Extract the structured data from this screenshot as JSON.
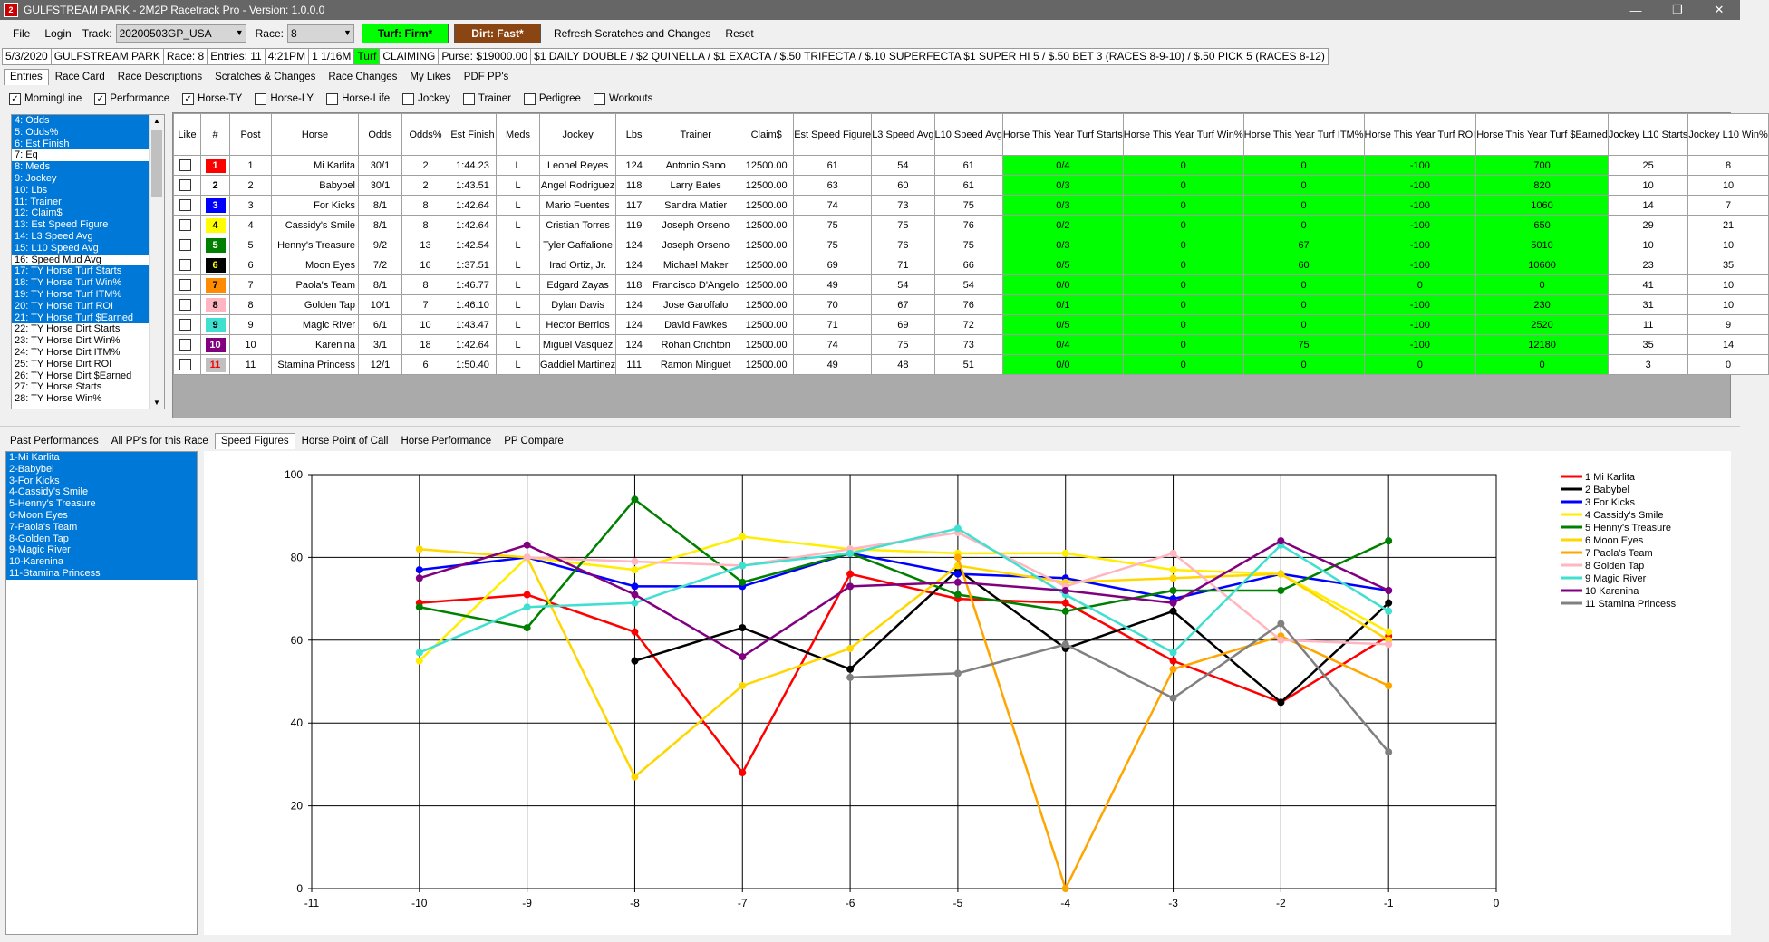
{
  "app": {
    "title": "GULFSTREAM PARK - 2M2P Racetrack Pro - Version: 1.0.0.0",
    "icon": "app-logo-icon"
  },
  "menu": {
    "file": "File",
    "login": "Login",
    "track_label": "Track:",
    "track_value": "20200503GP_USA",
    "race_label": "Race:",
    "race_value": "8",
    "turf": "Turf: Firm*",
    "dirt": "Dirt: Fast*",
    "refresh": "Refresh Scratches and Changes",
    "reset": "Reset"
  },
  "info": {
    "date": "5/3/2020",
    "track": "GULFSTREAM PARK",
    "race": "Race: 8",
    "entries": "Entries: 11",
    "time": "4:21PM",
    "distance": "1 1/16M",
    "surface": "Turf",
    "type": "CLAIMING",
    "purse": "Purse: $19000.00",
    "wagers": "$1 DAILY DOUBLE / $2 QUINELLA / $1 EXACTA / $.50 TRIFECTA / $.10 SUPERFECTA $1 SUPER HI 5 / $.50 BET 3 (RACES 8-9-10) / $.50 PICK 5 (RACES 8-12)"
  },
  "top_tabs": [
    "Entries",
    "Race Card",
    "Race Descriptions",
    "Scratches & Changes",
    "Race Changes",
    "My Likes",
    "PDF PP's"
  ],
  "checks": [
    {
      "label": "MorningLine",
      "checked": true
    },
    {
      "label": "Performance",
      "checked": true
    },
    {
      "label": "Horse-TY",
      "checked": true
    },
    {
      "label": "Horse-LY",
      "checked": false
    },
    {
      "label": "Horse-Life",
      "checked": false
    },
    {
      "label": "Jockey",
      "checked": false
    },
    {
      "label": "Trainer",
      "checked": false
    },
    {
      "label": "Pedigree",
      "checked": false
    },
    {
      "label": "Workouts",
      "checked": false
    }
  ],
  "columns_list": [
    {
      "t": "4: Odds",
      "s": true
    },
    {
      "t": "5: Odds%",
      "s": true
    },
    {
      "t": "6: Est Finish",
      "s": true
    },
    {
      "t": "7: Eq",
      "s": false
    },
    {
      "t": "8: Meds",
      "s": true
    },
    {
      "t": "9: Jockey",
      "s": true
    },
    {
      "t": "10: Lbs",
      "s": true
    },
    {
      "t": "11: Trainer",
      "s": true
    },
    {
      "t": "12: Claim$",
      "s": true
    },
    {
      "t": "13: Est Speed Figure",
      "s": true
    },
    {
      "t": "14: L3 Speed Avg",
      "s": true
    },
    {
      "t": "15: L10 Speed Avg",
      "s": true
    },
    {
      "t": "16: Speed Mud Avg",
      "s": false
    },
    {
      "t": "17: TY Horse Turf Starts",
      "s": true
    },
    {
      "t": "18: TY Horse Turf Win%",
      "s": true
    },
    {
      "t": "19: TY Horse Turf ITM%",
      "s": true
    },
    {
      "t": "20: TY Horse Turf ROI",
      "s": true
    },
    {
      "t": "21: TY Horse Turf $Earned",
      "s": true
    },
    {
      "t": "22: TY Horse Dirt Starts",
      "s": false
    },
    {
      "t": "23: TY Horse Dirt Win%",
      "s": false
    },
    {
      "t": "24: TY Horse Dirt ITM%",
      "s": false
    },
    {
      "t": "25: TY Horse Dirt ROI",
      "s": false
    },
    {
      "t": "26: TY Horse Dirt $Earned",
      "s": false
    },
    {
      "t": "27: TY Horse Starts",
      "s": false
    },
    {
      "t": "28: TY Horse Win%",
      "s": false
    }
  ],
  "table": {
    "headers": [
      "Like",
      "#",
      "Post",
      "Horse",
      "Odds",
      "Odds%",
      "Est Finish",
      "Meds",
      "Jockey",
      "Lbs",
      "Trainer",
      "Claim$",
      "Est Speed Figure",
      "L3 Speed Avg",
      "L10 Speed Avg",
      "Horse This Year Turf Starts",
      "Horse This Year Turf Win%",
      "Horse This Year Turf ITM%",
      "Horse This Year Turf ROI",
      "Horse This Year Turf $Earned",
      "Jockey L10 Starts",
      "Jockey L10 Win%"
    ],
    "rows": [
      [
        "1",
        "1",
        "Mi Karlita",
        "30/1",
        "2",
        "1:44.23",
        "L",
        "Leonel Reyes",
        "124",
        "Antonio Sano",
        "12500.00",
        "61",
        "54",
        "61",
        "0/4",
        "0",
        "0",
        "-100",
        "700",
        "25",
        "8"
      ],
      [
        "2",
        "2",
        "Babybel",
        "30/1",
        "2",
        "1:43.51",
        "L",
        "Angel Rodriguez",
        "118",
        "Larry Bates",
        "12500.00",
        "63",
        "60",
        "61",
        "0/3",
        "0",
        "0",
        "-100",
        "820",
        "10",
        "10"
      ],
      [
        "3",
        "3",
        "For Kicks",
        "8/1",
        "8",
        "1:42.64",
        "L",
        "Mario Fuentes",
        "117",
        "Sandra Matier",
        "12500.00",
        "74",
        "73",
        "75",
        "0/3",
        "0",
        "0",
        "-100",
        "1060",
        "14",
        "7"
      ],
      [
        "4",
        "4",
        "Cassidy's Smile",
        "8/1",
        "8",
        "1:42.64",
        "L",
        "Cristian Torres",
        "119",
        "Joseph Orseno",
        "12500.00",
        "75",
        "75",
        "76",
        "0/2",
        "0",
        "0",
        "-100",
        "650",
        "29",
        "21"
      ],
      [
        "5",
        "5",
        "Henny's Treasure",
        "9/2",
        "13",
        "1:42.54",
        "L",
        "Tyler Gaffalione",
        "124",
        "Joseph Orseno",
        "12500.00",
        "75",
        "76",
        "75",
        "0/3",
        "0",
        "67",
        "-100",
        "5010",
        "10",
        "10"
      ],
      [
        "6",
        "6",
        "Moon Eyes",
        "7/2",
        "16",
        "1:37.51",
        "L",
        "Irad Ortiz, Jr.",
        "124",
        "Michael Maker",
        "12500.00",
        "69",
        "71",
        "66",
        "0/5",
        "0",
        "60",
        "-100",
        "10600",
        "23",
        "35"
      ],
      [
        "7",
        "7",
        "Paola's Team",
        "8/1",
        "8",
        "1:46.77",
        "L",
        "Edgard Zayas",
        "118",
        "Francisco D'Angelo",
        "12500.00",
        "49",
        "54",
        "54",
        "0/0",
        "0",
        "0",
        "0",
        "0",
        "41",
        "10"
      ],
      [
        "8",
        "8",
        "Golden Tap",
        "10/1",
        "7",
        "1:46.10",
        "L",
        "Dylan Davis",
        "124",
        "Jose Garoffalo",
        "12500.00",
        "70",
        "67",
        "76",
        "0/1",
        "0",
        "0",
        "-100",
        "230",
        "31",
        "10"
      ],
      [
        "9",
        "9",
        "Magic River",
        "6/1",
        "10",
        "1:43.47",
        "L",
        "Hector Berrios",
        "124",
        "David Fawkes",
        "12500.00",
        "71",
        "69",
        "72",
        "0/5",
        "0",
        "0",
        "-100",
        "2520",
        "11",
        "9"
      ],
      [
        "10",
        "10",
        "Karenina",
        "3/1",
        "18",
        "1:42.64",
        "L",
        "Miguel Vasquez",
        "124",
        "Rohan Crichton",
        "12500.00",
        "74",
        "75",
        "73",
        "0/4",
        "0",
        "75",
        "-100",
        "12180",
        "35",
        "14"
      ],
      [
        "11",
        "11",
        "Stamina Princess",
        "12/1",
        "6",
        "1:50.40",
        "L",
        "Gaddiel Martinez",
        "111",
        "Ramon Minguet",
        "12500.00",
        "49",
        "48",
        "51",
        "0/0",
        "0",
        "0",
        "0",
        "0",
        "3",
        "0"
      ]
    ],
    "saddle_colors": [
      [
        "#ff0000",
        "#fff"
      ],
      [
        "#ffffff",
        "#000"
      ],
      [
        "#0000ff",
        "#fff"
      ],
      [
        "#ffff00",
        "#000"
      ],
      [
        "#008000",
        "#fff"
      ],
      [
        "#000000",
        "#ff0"
      ],
      [
        "#ff8c00",
        "#000"
      ],
      [
        "#ffb6c1",
        "#000"
      ],
      [
        "#40e0d0",
        "#000"
      ],
      [
        "#800080",
        "#fff"
      ],
      [
        "#c0c0c0",
        "#f00"
      ]
    ]
  },
  "bottom_tabs": [
    "Past Performances",
    "All PP's for this Race",
    "Speed Figures",
    "Horse Point of Call",
    "Horse Performance",
    "PP Compare"
  ],
  "horse_list": [
    "1-Mi Karlita",
    "2-Babybel",
    "3-For Kicks",
    "4-Cassidy's Smile",
    "5-Henny's Treasure",
    "6-Moon Eyes",
    "7-Paola's Team",
    "8-Golden Tap",
    "9-Magic River",
    "10-Karenina",
    "11-Stamina Princess"
  ],
  "chart_data": {
    "type": "line",
    "x": [
      -11,
      -10,
      -9,
      -8,
      -7,
      -6,
      -5,
      -4,
      -3,
      -2,
      -1,
      0
    ],
    "xlim": [
      -11,
      0
    ],
    "ylim": [
      0,
      100
    ],
    "yticks": [
      0,
      20,
      40,
      60,
      80,
      100
    ],
    "xlabel": "",
    "ylabel": "",
    "title": "",
    "grid": true,
    "legend": "right",
    "series": [
      {
        "name": "1 Mi Karlita",
        "color": "#ff0000",
        "points": [
          [
            -10,
            69
          ],
          [
            -9,
            71
          ],
          [
            -8,
            62
          ],
          [
            -7,
            28
          ],
          [
            -6,
            76
          ],
          [
            -5,
            70
          ],
          [
            -4,
            69
          ],
          [
            -3,
            55
          ],
          [
            -2,
            45
          ],
          [
            -1,
            61
          ]
        ]
      },
      {
        "name": "2 Babybel",
        "color": "#000000",
        "points": [
          [
            -8,
            55
          ],
          [
            -7,
            63
          ],
          [
            -6,
            53
          ],
          [
            -5,
            77
          ],
          [
            -4,
            58
          ],
          [
            -3,
            67
          ],
          [
            -2,
            45
          ],
          [
            -1,
            69
          ]
        ]
      },
      {
        "name": "3 For Kicks",
        "color": "#0000ff",
        "points": [
          [
            -10,
            77
          ],
          [
            -9,
            80
          ],
          [
            -8,
            73
          ],
          [
            -7,
            73
          ],
          [
            -6,
            81
          ],
          [
            -5,
            76
          ],
          [
            -4,
            75
          ],
          [
            -3,
            70
          ],
          [
            -2,
            76
          ],
          [
            -1,
            72
          ]
        ]
      },
      {
        "name": "4 Cassidy's Smile",
        "color": "#ffee00",
        "points": [
          [
            -10,
            55
          ],
          [
            -9,
            80
          ],
          [
            -8,
            77
          ],
          [
            -7,
            85
          ],
          [
            -6,
            82
          ],
          [
            -5,
            81
          ],
          [
            -4,
            81
          ],
          [
            -3,
            77
          ],
          [
            -2,
            76
          ],
          [
            -1,
            62
          ]
        ]
      },
      {
        "name": "5 Henny's Treasure",
        "color": "#008000",
        "points": [
          [
            -10,
            68
          ],
          [
            -9,
            63
          ],
          [
            -8,
            94
          ],
          [
            -7,
            74
          ],
          [
            -6,
            81
          ],
          [
            -5,
            71
          ],
          [
            -4,
            67
          ],
          [
            -3,
            72
          ],
          [
            -2,
            72
          ],
          [
            -1,
            84
          ]
        ]
      },
      {
        "name": "6 Moon Eyes",
        "color": "#ffd700",
        "points": [
          [
            -10,
            82
          ],
          [
            -9,
            80
          ],
          [
            -8,
            27
          ],
          [
            -7,
            49
          ],
          [
            -6,
            58
          ],
          [
            -5,
            78
          ],
          [
            -4,
            74
          ],
          [
            -3,
            75
          ],
          [
            -2,
            76
          ],
          [
            -1,
            60
          ]
        ]
      },
      {
        "name": "7 Paola's Team",
        "color": "#ffa500",
        "points": [
          [
            -5,
            80
          ],
          [
            -4,
            0
          ],
          [
            -3,
            53
          ],
          [
            -2,
            61
          ],
          [
            -1,
            49
          ]
        ]
      },
      {
        "name": "8 Golden Tap",
        "color": "#ffb6c1",
        "points": [
          [
            -9,
            80
          ],
          [
            -8,
            79
          ],
          [
            -7,
            78
          ],
          [
            -6,
            82
          ],
          [
            -5,
            86
          ],
          [
            -4,
            73
          ],
          [
            -3,
            81
          ],
          [
            -2,
            60
          ],
          [
            -1,
            59
          ]
        ]
      },
      {
        "name": "9 Magic River",
        "color": "#40e0d0",
        "points": [
          [
            -10,
            57
          ],
          [
            -9,
            68
          ],
          [
            -8,
            69
          ],
          [
            -7,
            78
          ],
          [
            -6,
            81
          ],
          [
            -5,
            87
          ],
          [
            -4,
            71
          ],
          [
            -3,
            57
          ],
          [
            -2,
            83
          ],
          [
            -1,
            67
          ]
        ]
      },
      {
        "name": "10 Karenina",
        "color": "#800080",
        "points": [
          [
            -10,
            75
          ],
          [
            -9,
            83
          ],
          [
            -8,
            71
          ],
          [
            -7,
            56
          ],
          [
            -6,
            73
          ],
          [
            -5,
            74
          ],
          [
            -4,
            72
          ],
          [
            -3,
            69
          ],
          [
            -2,
            84
          ],
          [
            -1,
            72
          ]
        ]
      },
      {
        "name": "11 Stamina Princess",
        "color": "#808080",
        "points": [
          [
            -6,
            51
          ],
          [
            -5,
            52
          ],
          [
            -4,
            59
          ],
          [
            -3,
            46
          ],
          [
            -2,
            64
          ],
          [
            -1,
            33
          ]
        ]
      }
    ]
  }
}
